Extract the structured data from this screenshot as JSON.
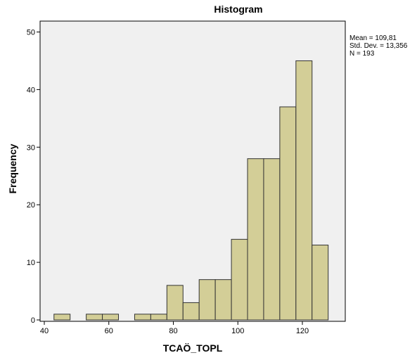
{
  "chart_data": {
    "type": "bar",
    "title": "Histogram",
    "xlabel": "TCAÖ_TOPL",
    "ylabel": "Frequency",
    "xlim": [
      40,
      130
    ],
    "ylim": [
      0,
      50
    ],
    "x_ticks": [
      40,
      60,
      80,
      100,
      120
    ],
    "y_ticks": [
      0,
      10,
      20,
      30,
      40,
      50
    ],
    "bin_width": 5,
    "bins": [
      {
        "start": 43,
        "end": 48,
        "count": 1
      },
      {
        "start": 48,
        "end": 53,
        "count": 0
      },
      {
        "start": 53,
        "end": 58,
        "count": 1
      },
      {
        "start": 58,
        "end": 63,
        "count": 1
      },
      {
        "start": 63,
        "end": 68,
        "count": 0
      },
      {
        "start": 68,
        "end": 73,
        "count": 1
      },
      {
        "start": 73,
        "end": 78,
        "count": 1
      },
      {
        "start": 78,
        "end": 83,
        "count": 6
      },
      {
        "start": 83,
        "end": 88,
        "count": 3
      },
      {
        "start": 88,
        "end": 93,
        "count": 7
      },
      {
        "start": 93,
        "end": 98,
        "count": 7
      },
      {
        "start": 98,
        "end": 103,
        "count": 14
      },
      {
        "start": 103,
        "end": 108,
        "count": 28
      },
      {
        "start": 108,
        "end": 113,
        "count": 28
      },
      {
        "start": 113,
        "end": 118,
        "count": 37
      },
      {
        "start": 118,
        "end": 123,
        "count": 45
      },
      {
        "start": 123,
        "end": 128,
        "count": 13
      }
    ],
    "stats": {
      "mean_label": "Mean = 109,81",
      "stddev_label": "Std. Dev. = 13,356",
      "n_label": "N = 193"
    },
    "grid": false,
    "plot_background": "#f0f0f0",
    "bar_fill": "#d3ce97",
    "bar_stroke": "#333333"
  }
}
